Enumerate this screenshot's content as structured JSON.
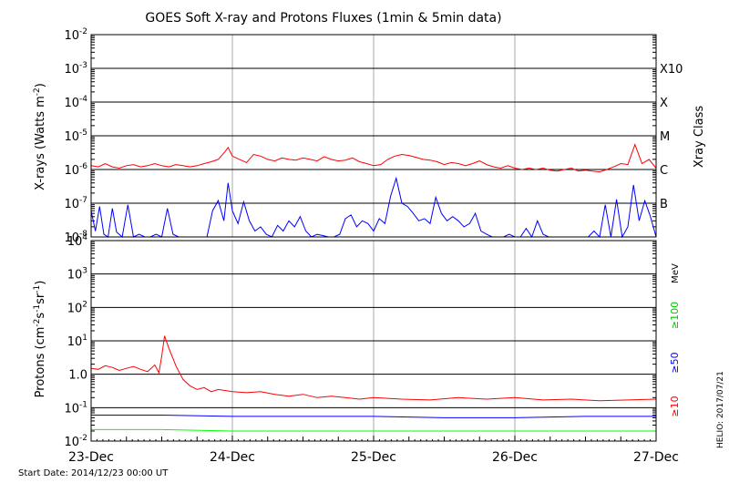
{
  "title": "GOES Soft X-ray and Protons Fluxes   (1min & 5min data)",
  "footer": {
    "start_date": "Start Date: 2014/12/23 00:00 UT",
    "credit": "HELIO: 2017/07/21"
  },
  "colors": {
    "red": "#ff0000",
    "blue": "#0000ff",
    "green": "#00ff00",
    "gray": "#aaaaaa"
  },
  "chart_data": [
    {
      "type": "line",
      "title": "GOES Soft X-ray and Protons Fluxes   (1min & 5min data)",
      "ylabel": "X-rays (Watts m^-2)",
      "ylabel_main": "X-rays (Watts m",
      "ylabel_exp": "-2",
      "ylabel_close": ")",
      "yscale": "log",
      "ylim": [
        1e-08,
        0.01
      ],
      "x_unit": "days since 2014-12-23 00:00 UT",
      "xlim": [
        0,
        4
      ],
      "xtick_labels": [
        "23-Dec",
        "24-Dec",
        "25-Dec",
        "26-Dec",
        "27-Dec"
      ],
      "ytick_labels": [
        {
          "base": "10",
          "exp": "-8"
        },
        {
          "base": "10",
          "exp": "-7"
        },
        {
          "base": "10",
          "exp": "-6"
        },
        {
          "base": "10",
          "exp": "-5"
        },
        {
          "base": "10",
          "exp": "-4"
        },
        {
          "base": "10",
          "exp": "-3"
        },
        {
          "base": "10",
          "exp": "-2"
        }
      ],
      "right_axis_label": "Xray Class",
      "class_labels": [
        {
          "label": "B",
          "value": 1e-07
        },
        {
          "label": "C",
          "value": 1e-06
        },
        {
          "label": "M",
          "value": 1e-05
        },
        {
          "label": "X",
          "value": 0.0001
        },
        {
          "label": "X10",
          "value": 0.001
        }
      ],
      "series": [
        {
          "color": "#ff0000",
          "x": [
            0,
            0.05,
            0.1,
            0.15,
            0.2,
            0.25,
            0.3,
            0.35,
            0.4,
            0.45,
            0.5,
            0.55,
            0.6,
            0.65,
            0.7,
            0.75,
            0.8,
            0.85,
            0.9,
            0.95,
            0.97,
            1.0,
            1.05,
            1.1,
            1.15,
            1.2,
            1.25,
            1.3,
            1.35,
            1.4,
            1.45,
            1.5,
            1.55,
            1.6,
            1.65,
            1.7,
            1.75,
            1.8,
            1.85,
            1.9,
            1.95,
            2.0,
            2.05,
            2.1,
            2.15,
            2.2,
            2.25,
            2.3,
            2.35,
            2.4,
            2.45,
            2.5,
            2.55,
            2.6,
            2.65,
            2.7,
            2.75,
            2.8,
            2.85,
            2.9,
            2.95,
            3.0,
            3.05,
            3.1,
            3.15,
            3.2,
            3.25,
            3.3,
            3.35,
            3.4,
            3.45,
            3.5,
            3.55,
            3.6,
            3.65,
            3.7,
            3.75,
            3.8,
            3.85,
            3.9,
            3.95,
            4.0
          ],
          "y": [
            1.3e-06,
            1.2e-06,
            1.5e-06,
            1.2e-06,
            1.1e-06,
            1.3e-06,
            1.4e-06,
            1.2e-06,
            1.3e-06,
            1.5e-06,
            1.3e-06,
            1.2e-06,
            1.4e-06,
            1.3e-06,
            1.2e-06,
            1.3e-06,
            1.5e-06,
            1.7e-06,
            2e-06,
            3.5e-06,
            4.5e-06,
            2.5e-06,
            2e-06,
            1.6e-06,
            2.8e-06,
            2.5e-06,
            2e-06,
            1.8e-06,
            2.2e-06,
            2e-06,
            1.9e-06,
            2.2e-06,
            2e-06,
            1.8e-06,
            2.4e-06,
            2e-06,
            1.8e-06,
            1.9e-06,
            2.2e-06,
            1.7e-06,
            1.5e-06,
            1.3e-06,
            1.4e-06,
            2e-06,
            2.5e-06,
            2.8e-06,
            2.6e-06,
            2.3e-06,
            2e-06,
            1.9e-06,
            1.7e-06,
            1.4e-06,
            1.6e-06,
            1.5e-06,
            1.3e-06,
            1.5e-06,
            1.8e-06,
            1.4e-06,
            1.2e-06,
            1.1e-06,
            1.3e-06,
            1.1e-06,
            1e-06,
            1.1e-06,
            1e-06,
            1.1e-06,
            9.5e-07,
            9e-07,
            1e-06,
            1.1e-06,
            9e-07,
            9.5e-07,
            9e-07,
            8.5e-07,
            1e-06,
            1.2e-06,
            1.5e-06,
            1.4e-06,
            5.5e-06,
            1.5e-06,
            2e-06,
            1.1e-06
          ]
        },
        {
          "color": "#0000ff",
          "x": [
            0,
            0.03,
            0.06,
            0.09,
            0.12,
            0.15,
            0.18,
            0.22,
            0.26,
            0.3,
            0.34,
            0.38,
            0.42,
            0.46,
            0.5,
            0.54,
            0.58,
            0.62,
            0.66,
            0.7,
            0.74,
            0.78,
            0.82,
            0.86,
            0.9,
            0.94,
            0.97,
            1.0,
            1.04,
            1.08,
            1.12,
            1.16,
            1.2,
            1.24,
            1.28,
            1.32,
            1.36,
            1.4,
            1.44,
            1.48,
            1.52,
            1.56,
            1.6,
            1.64,
            1.68,
            1.72,
            1.76,
            1.8,
            1.84,
            1.88,
            1.92,
            1.96,
            2.0,
            2.04,
            2.08,
            2.12,
            2.16,
            2.2,
            2.24,
            2.28,
            2.32,
            2.36,
            2.4,
            2.44,
            2.48,
            2.52,
            2.56,
            2.6,
            2.64,
            2.68,
            2.72,
            2.76,
            2.8,
            2.84,
            2.88,
            2.92,
            2.96,
            3.0,
            3.04,
            3.08,
            3.12,
            3.16,
            3.2,
            3.24,
            3.28,
            3.32,
            3.36,
            3.4,
            3.44,
            3.48,
            3.52,
            3.56,
            3.6,
            3.64,
            3.68,
            3.72,
            3.76,
            3.8,
            3.84,
            3.88,
            3.92,
            3.96,
            4.0
          ],
          "y": [
            6e-08,
            1.5e-08,
            8e-08,
            1.2e-08,
            1e-08,
            7e-08,
            1.4e-08,
            1e-08,
            9e-08,
            1e-08,
            1.2e-08,
            1e-08,
            1e-08,
            1.2e-08,
            1e-08,
            7e-08,
            1.2e-08,
            1e-08,
            1e-08,
            1e-08,
            1e-08,
            1e-08,
            1e-08,
            6e-08,
            1.2e-07,
            3e-08,
            4e-07,
            6e-08,
            2.5e-08,
            1.1e-07,
            3e-08,
            1.5e-08,
            2e-08,
            1.2e-08,
            1e-08,
            2.2e-08,
            1.5e-08,
            3e-08,
            2e-08,
            4e-08,
            1.5e-08,
            1e-08,
            1.2e-08,
            1.1e-08,
            1e-08,
            1e-08,
            1.2e-08,
            3.5e-08,
            4.5e-08,
            2e-08,
            3e-08,
            2.5e-08,
            1.5e-08,
            3.5e-08,
            2.5e-08,
            1.6e-07,
            5.5e-07,
            1e-07,
            8e-08,
            5e-08,
            3e-08,
            3.5e-08,
            2.5e-08,
            1.5e-07,
            5e-08,
            3e-08,
            4e-08,
            3e-08,
            2e-08,
            2.5e-08,
            5e-08,
            1.5e-08,
            1.2e-08,
            1e-08,
            1e-08,
            1e-08,
            1.2e-08,
            1e-08,
            1e-08,
            1.8e-08,
            1e-08,
            3e-08,
            1.2e-08,
            1e-08,
            1e-08,
            1e-08,
            1e-08,
            1e-08,
            1e-08,
            1e-08,
            1e-08,
            1.5e-08,
            1e-08,
            9e-08,
            1e-08,
            1.3e-07,
            1e-08,
            2e-08,
            3.5e-07,
            3e-08,
            1.2e-07,
            4e-08,
            1e-08
          ]
        }
      ]
    },
    {
      "type": "line",
      "ylabel": "Protons (cm^-2 s^-1 sr^-1)",
      "ylabel_main": "Protons (cm",
      "ylabel_exp1": "-2",
      "ylabel_mid": "s",
      "ylabel_exp2": "-1",
      "ylabel_sr": "sr",
      "ylabel_exp3": "-1",
      "ylabel_close": ")",
      "yscale": "log",
      "ylim": [
        0.01,
        10000
      ],
      "x_unit": "days since 2014-12-23 00:00 UT",
      "xlim": [
        0,
        4
      ],
      "xtick_labels": [
        "23-Dec",
        "24-Dec",
        "25-Dec",
        "26-Dec",
        "27-Dec"
      ],
      "ytick_labels": [
        {
          "base": "10",
          "exp": "-2"
        },
        {
          "base": "10",
          "exp": "-1"
        },
        {
          "base": "1.0",
          "exp": ""
        },
        {
          "base": "10",
          "exp": "1"
        },
        {
          "base": "10",
          "exp": "2"
        },
        {
          "base": "10",
          "exp": "3"
        },
        {
          "base": "10",
          "exp": "4"
        }
      ],
      "threshold": 10,
      "right_unit": "MeV",
      "series": [
        {
          "name": "≥10",
          "color": "#ff0000",
          "x": [
            0,
            0.05,
            0.1,
            0.15,
            0.2,
            0.25,
            0.3,
            0.35,
            0.4,
            0.45,
            0.48,
            0.5,
            0.52,
            0.55,
            0.6,
            0.65,
            0.7,
            0.75,
            0.8,
            0.85,
            0.9,
            1.0,
            1.1,
            1.2,
            1.3,
            1.4,
            1.5,
            1.6,
            1.7,
            1.8,
            1.9,
            2.0,
            2.2,
            2.4,
            2.6,
            2.8,
            3.0,
            3.2,
            3.4,
            3.6,
            3.8,
            4.0
          ],
          "y": [
            1.5,
            1.4,
            1.8,
            1.6,
            1.3,
            1.5,
            1.7,
            1.4,
            1.2,
            1.9,
            1.1,
            3.5,
            14,
            6,
            1.8,
            0.7,
            0.45,
            0.35,
            0.4,
            0.3,
            0.35,
            0.3,
            0.28,
            0.3,
            0.25,
            0.22,
            0.25,
            0.2,
            0.22,
            0.2,
            0.18,
            0.2,
            0.18,
            0.17,
            0.2,
            0.18,
            0.2,
            0.17,
            0.18,
            0.16,
            0.17,
            0.18
          ]
        },
        {
          "name": "≥50",
          "color": "#0000ff",
          "x": [
            0,
            0.5,
            1,
            1.5,
            2,
            2.5,
            3,
            3.5,
            4
          ],
          "y": [
            0.06,
            0.06,
            0.055,
            0.055,
            0.055,
            0.05,
            0.05,
            0.055,
            0.055
          ]
        },
        {
          "name": "≥100",
          "color": "#00ff00",
          "x": [
            0,
            0.5,
            1,
            1.5,
            2,
            2.5,
            3,
            3.5,
            4
          ],
          "y": [
            0.022,
            0.022,
            0.02,
            0.02,
            0.02,
            0.02,
            0.02,
            0.02,
            0.02
          ]
        }
      ]
    }
  ]
}
